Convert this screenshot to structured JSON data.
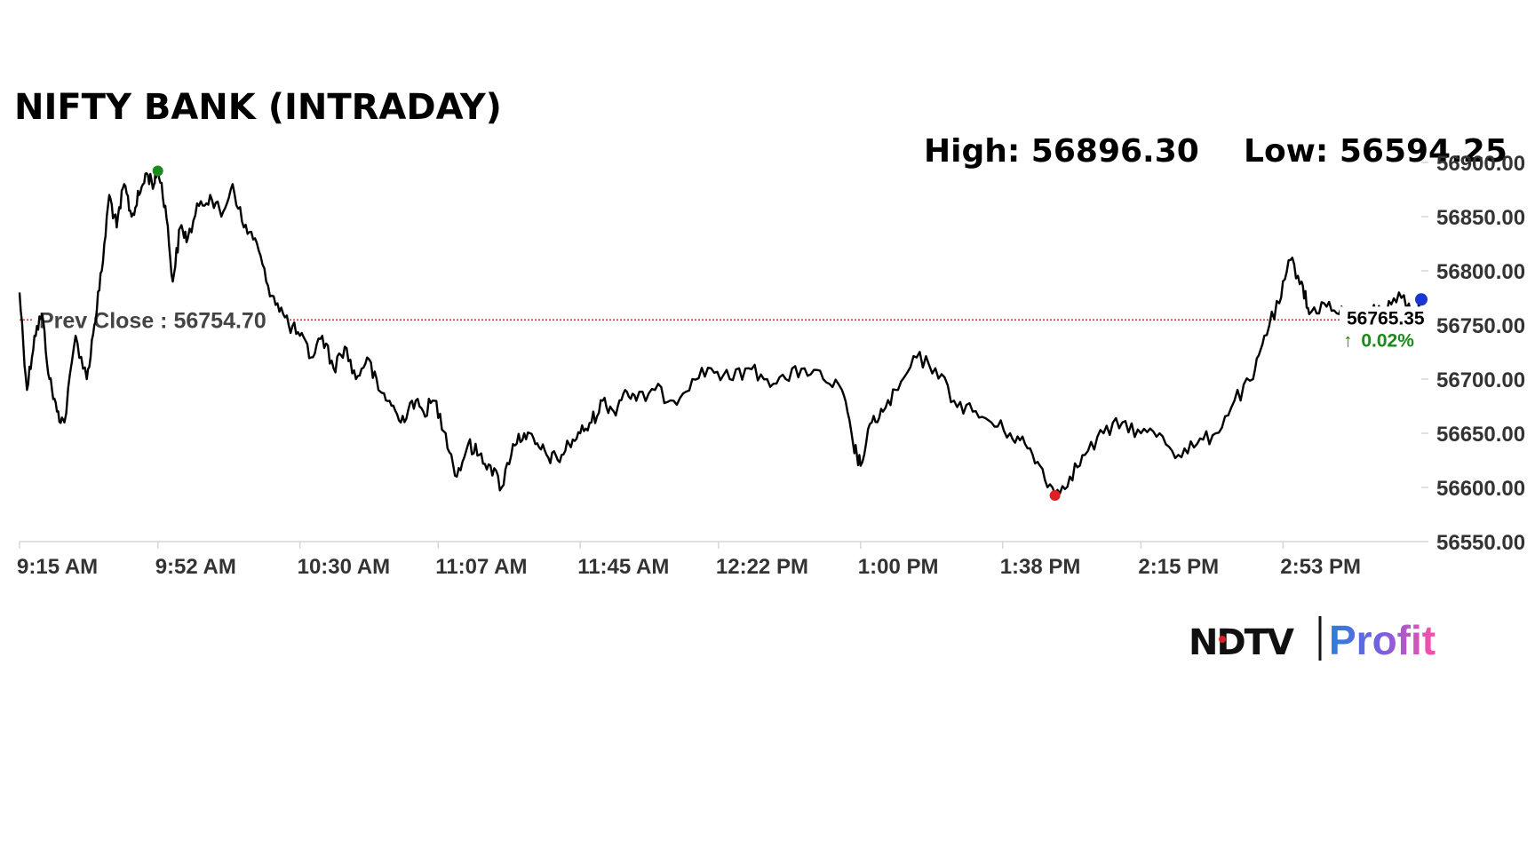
{
  "chart_data": {
    "type": "line",
    "title": "NIFTY BANK (INTRADAY)",
    "high_label": "High: 56896.30",
    "low_label": "Low: 56594.25",
    "high": 56896.3,
    "low": 56594.25,
    "prev_close": 56754.7,
    "prev_close_label": "Prev Close : 56754.70",
    "last_value_label": "56765.35",
    "last_value": 56765.35,
    "change_label": "0.02%",
    "change_arrow": "↑",
    "ylim": [
      56550,
      56900
    ],
    "yticks": [
      56550,
      56600,
      56650,
      56700,
      56750,
      56800,
      56850,
      56900
    ],
    "ytick_labels": [
      "56550.00",
      "56600.00",
      "56650.00",
      "56700.00",
      "56750.00",
      "56800.00",
      "56850.00",
      "56900.00"
    ],
    "xlim": [
      "9:15 AM",
      "3:30 PM"
    ],
    "xticks": [
      "9:15 AM",
      "9:52 AM",
      "10:30 AM",
      "11:07 AM",
      "11:45 AM",
      "12:22 PM",
      "1:00 PM",
      "1:38 PM",
      "2:15 PM",
      "2:53 PM"
    ],
    "x": [
      "9:15",
      "9:17",
      "9:19",
      "9:21",
      "9:23",
      "9:25",
      "9:27",
      "9:30",
      "9:33",
      "9:35",
      "9:37",
      "9:39",
      "9:41",
      "9:43",
      "9:45",
      "9:47",
      "9:49",
      "9:51",
      "9:52",
      "9:54",
      "9:56",
      "9:58",
      "10:00",
      "10:03",
      "10:06",
      "10:09",
      "10:12",
      "10:15",
      "10:18",
      "10:21",
      "10:24",
      "10:27",
      "10:30",
      "10:33",
      "10:36",
      "10:39",
      "10:42",
      "10:45",
      "10:48",
      "10:51",
      "10:54",
      "10:57",
      "11:00",
      "11:03",
      "11:06",
      "11:09",
      "11:12",
      "11:15",
      "11:18",
      "11:21",
      "11:24",
      "11:27",
      "11:30",
      "11:33",
      "11:36",
      "11:39",
      "11:42",
      "11:45",
      "11:48",
      "11:51",
      "11:54",
      "11:57",
      "12:00",
      "12:05",
      "12:10",
      "12:15",
      "12:20",
      "12:25",
      "12:30",
      "12:35",
      "12:40",
      "12:45",
      "12:50",
      "12:55",
      "12:58",
      "13:00",
      "13:03",
      "13:06",
      "13:10",
      "13:15",
      "13:20",
      "13:25",
      "13:30",
      "13:35",
      "13:40",
      "13:44",
      "13:48",
      "13:52",
      "13:56",
      "14:00",
      "14:05",
      "14:10",
      "14:15",
      "14:20",
      "14:25",
      "14:30",
      "14:35",
      "14:40",
      "14:45",
      "14:48",
      "14:52",
      "14:55",
      "14:58",
      "15:00",
      "15:04",
      "15:08",
      "15:12",
      "15:16",
      "15:20",
      "15:24",
      "15:28",
      "15:30"
    ],
    "values": [
      56780,
      56690,
      56740,
      56760,
      56700,
      56670,
      56660,
      56740,
      56700,
      56750,
      56800,
      56870,
      56840,
      56880,
      56850,
      56870,
      56890,
      56880,
      56896,
      56860,
      56790,
      56840,
      56830,
      56860,
      56870,
      56850,
      56880,
      56840,
      56830,
      56790,
      56770,
      56750,
      56740,
      56720,
      56740,
      56710,
      56730,
      56700,
      56720,
      56690,
      56680,
      56660,
      56680,
      56670,
      56680,
      56650,
      56610,
      56640,
      56630,
      56620,
      56600,
      56640,
      56650,
      56640,
      56630,
      56625,
      56640,
      56650,
      56660,
      56680,
      56670,
      56690,
      56680,
      56690,
      56680,
      56700,
      56710,
      56700,
      56710,
      56700,
      56700,
      56710,
      56700,
      56690,
      56640,
      56620,
      56660,
      56670,
      56690,
      56720,
      56710,
      56680,
      56670,
      56660,
      56650,
      56640,
      56620,
      56594,
      56610,
      56630,
      56650,
      56660,
      56650,
      56650,
      56630,
      56640,
      56650,
      56680,
      56700,
      56740,
      56770,
      56810,
      56790,
      56760,
      56770,
      56760,
      56760,
      56765,
      56760,
      56780,
      56760,
      56765
    ]
  },
  "brand": {
    "logo_left": "NDTV",
    "logo_right": "Profit"
  },
  "colors": {
    "line": "#000000",
    "prev_close_line": "#c0392b",
    "high_marker": "#1a8a1a",
    "low_marker": "#e02020",
    "last_marker": "#1a35d6",
    "change_up": "#1a8a1a",
    "axis": "#d6d6d6",
    "logo_dot": "#e02020"
  }
}
